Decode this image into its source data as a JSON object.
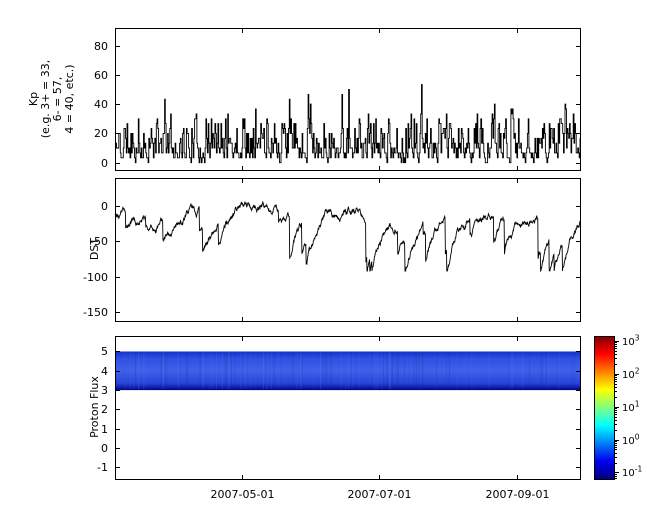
{
  "figure": {
    "background": "#ffffff",
    "description": "Three stacked time-series panels (Kp index, DST index, Proton Flux spectrogram) sharing a 2007 date axis, with a log-scaled jet colorbar beside the bottom panel"
  },
  "chart_data": [
    {
      "type": "line",
      "panel": "kp",
      "title": "",
      "xlabel": "",
      "ylabel": "Kp (e.g. 3+ = 33, 6- = 57, 4 = 40, etc.)",
      "ylabel_lines": [
        "Kp",
        "(e.g. 3+ = 33,",
        "6- = 57,",
        "4 = 40, etc.)"
      ],
      "yticks": [
        0,
        20,
        40,
        60,
        80
      ],
      "ylim": [
        -5,
        92
      ],
      "xlim_days": [
        0,
        208
      ],
      "xtick_days": [
        57,
        118,
        180
      ],
      "xtick_labels": [
        "2007-05-01",
        "2007-07-01",
        "2007-09-01"
      ],
      "grid": false,
      "legend": null,
      "series": [
        {
          "name": "Kp index",
          "color": "#000000",
          "style": "step",
          "value_range": [
            0,
            57
          ],
          "quantum": 3.3333,
          "description": "3-hourly planetary Kp index (tenths scale); noisy step trace oscillating between 0 and ~50 with frequent peaks of 30-47 and occasional maxima near 57",
          "generator": {
            "seed": 11,
            "n": 620,
            "start": 12,
            "spike_prob": 0.05,
            "spike_min": 15,
            "spike_span": 28,
            "skew": 2,
            "scale": 38,
            "smooth": 0.3
          }
        }
      ]
    },
    {
      "type": "line",
      "panel": "dst",
      "title": "",
      "xlabel": "",
      "ylabel": "DST",
      "ylabel_lines": [
        "DST"
      ],
      "yticks": [
        0,
        -50,
        -100,
        -150
      ],
      "ylim": [
        -163,
        40
      ],
      "xlim_days": [
        0,
        208
      ],
      "xtick_days": [
        57,
        118,
        180
      ],
      "xtick_labels": [
        "2007-05-01",
        "2007-07-01",
        "2007-09-01"
      ],
      "grid": false,
      "legend": null,
      "series": [
        {
          "name": "DST index",
          "color": "#000000",
          "style": "line",
          "value_range": [
            -92,
            15
          ],
          "description": "Hourly DST index (nT); baseline near -8 nT with recurrent storm dips to -60..-85 nT followed by gradual sawtooth recoveries",
          "generator": {
            "seed": 23,
            "n": 1300,
            "baseline": -8,
            "storm_prob": 0.012,
            "storm_min": 12,
            "storm_span": 55,
            "recovery": 0.03,
            "noise": 6.5
          }
        }
      ]
    },
    {
      "type": "heatmap",
      "panel": "proton-flux",
      "title": "",
      "xlabel": "",
      "ylabel": "Proton Flux",
      "ylabel_lines": [
        "Proton Flux"
      ],
      "yticks": [
        -1,
        0,
        1,
        2,
        3,
        4,
        5
      ],
      "ylim": [
        -1.6,
        5.8
      ],
      "xlim_days": [
        0,
        208
      ],
      "xtick_days": [
        57,
        118,
        180
      ],
      "xtick_labels": [
        "2007-05-01",
        "2007-07-01",
        "2007-09-01"
      ],
      "grid": false,
      "legend": null,
      "band": {
        "y_range": [
          3,
          5
        ],
        "description": "Continuous horizontal band of low proton flux (~1e-1 to 1e0, blue on jet colormap) spanning the full time range between channels 3 and 5",
        "gradient_stops": [
          [
            "0",
            "#1430c8"
          ],
          [
            "0.18",
            "#2e50e2"
          ],
          [
            "0.5",
            "#3f61ea"
          ],
          [
            "0.82",
            "#2744d8"
          ],
          [
            "0.95",
            "#0a18a0"
          ],
          [
            "1",
            "#000078"
          ]
        ],
        "streaks": {
          "seed": 5,
          "count": 120,
          "colors": [
            "#16309f",
            "#5f7cf4"
          ]
        }
      },
      "colorbar": {
        "scale": "log",
        "colormap": "jet",
        "tick_label_base": "10",
        "tick_exponents": [
          3,
          2,
          1,
          0,
          -1
        ],
        "exp_min": -1.2,
        "exp_max": 3.15,
        "jet_stops": [
          [
            "0",
            "#000080"
          ],
          [
            "0.125",
            "#0000f1"
          ],
          [
            "0.375",
            "#00ffff"
          ],
          [
            "0.625",
            "#ffff00"
          ],
          [
            "0.875",
            "#ff0000"
          ],
          [
            "1",
            "#800000"
          ]
        ]
      }
    }
  ]
}
